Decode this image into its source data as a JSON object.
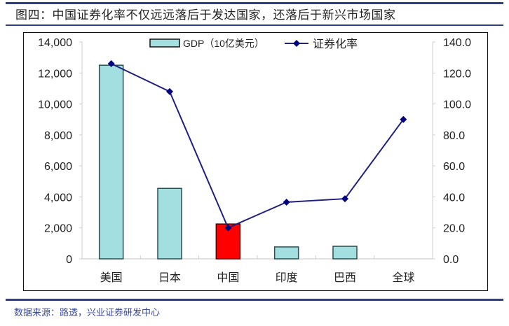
{
  "title": "图四：中国证券化率不仅远远落后于发达国家，还落后于新兴市场国家",
  "source": "数据来源：路透，兴业证券研发中心",
  "colors": {
    "bar": "#a3dfe0",
    "bar_highlight": "#ff0000",
    "line": "#1f1f80",
    "marker": "#000080",
    "rule": "#2c3e8c"
  },
  "chart_data": {
    "type": "bar+line",
    "title": "中国证券化率不仅远远落后于发达国家，还落后于新兴市场国家",
    "categories": [
      "美国",
      "日本",
      "中国",
      "印度",
      "巴西",
      "全球"
    ],
    "series": [
      {
        "name": "GDP（10亿美元）",
        "type": "bar",
        "axis": "left",
        "values": [
          12500,
          4550,
          2250,
          770,
          810,
          null
        ]
      },
      {
        "name": "证券化率",
        "type": "line",
        "axis": "right",
        "values": [
          126,
          108,
          20,
          36.6,
          38.8,
          90
        ]
      }
    ],
    "highlight_category": "中国",
    "ylim_left": [
      0,
      14000
    ],
    "ylim_right": [
      0,
      140
    ],
    "yticks_left": [
      "0",
      "2,000",
      "4,000",
      "6,000",
      "8,000",
      "10,000",
      "12,000",
      "14,000"
    ],
    "yticks_right": [
      "0.0",
      "20.0",
      "40.0",
      "60.0",
      "80.0",
      "100.0",
      "120.0",
      "140.0"
    ],
    "legend": [
      "GDP（10亿美元）",
      "证券化率"
    ],
    "legend_position": "top",
    "grid": false
  }
}
